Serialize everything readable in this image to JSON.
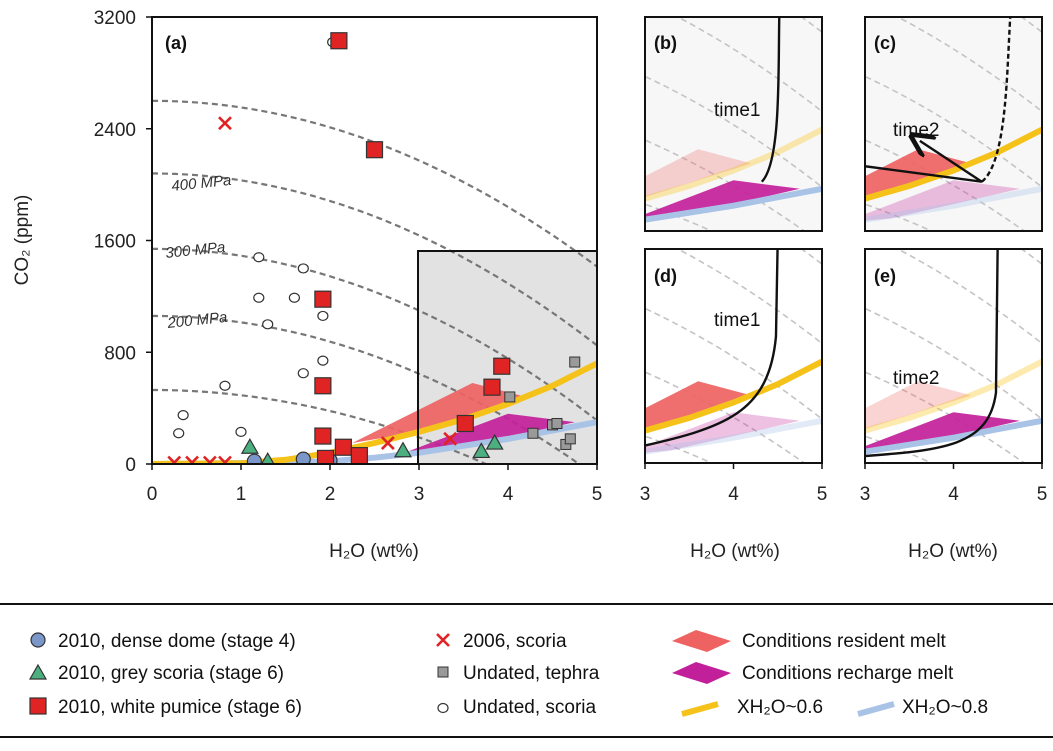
{
  "colors": {
    "dense_dome": "#7b96c8",
    "grey_scoria": "#4caf80",
    "white_pumice": "#e02424",
    "scoria_2006": "#e02424",
    "tephra": "#9a9a9a",
    "resident": "#ee6262",
    "recharge": "#c21f9a",
    "x06": "#f5c21a",
    "x08": "#a9c3e6",
    "box": "#e2e2e2",
    "isobar": "#777777"
  },
  "panels": {
    "a": {
      "label": "(a)"
    },
    "b": {
      "label": "(b)",
      "time_label": "time1"
    },
    "c": {
      "label": "(c)",
      "time_label": "time2"
    },
    "d": {
      "label": "(d)",
      "time_label": "time1"
    },
    "e": {
      "label": "(e)",
      "time_label": "time2"
    }
  },
  "axes": {
    "ylabel": "CO₂ (ppm)",
    "xlabel": "H₂O (wt%)",
    "main_xticks": [
      "0",
      "1",
      "2",
      "3",
      "4",
      "5"
    ],
    "main_yticks": [
      "0",
      "800",
      "1600",
      "2400",
      "3200"
    ],
    "small_xticks": [
      "3",
      "4",
      "5"
    ]
  },
  "isobar_labels": [
    "400 MPa",
    "300 MPa",
    "200 MPa"
  ],
  "legend": {
    "items": [
      {
        "label": "2010, dense dome (stage 4)"
      },
      {
        "label": "2010, grey scoria (stage 6)"
      },
      {
        "label": "2010, white pumice (stage 6)"
      },
      {
        "label": "2006, scoria"
      },
      {
        "label": "Undated, tephra"
      },
      {
        "label": "Undated, scoria"
      },
      {
        "label": "Conditions resident melt"
      },
      {
        "label": "Conditions recharge melt"
      },
      {
        "label": "XH₂O~0.6"
      },
      {
        "label": "XH₂O~0.8"
      }
    ]
  },
  "chart_data": {
    "type": "scatter",
    "xlabel": "H₂O (wt%)",
    "ylabel": "CO₂ (ppm)",
    "xlim": [
      0,
      5
    ],
    "ylim": [
      0,
      3200
    ],
    "series": [
      {
        "name": "2010, dense dome (stage 4)",
        "points": [
          [
            1.15,
            20
          ],
          [
            1.7,
            35
          ],
          [
            2.0,
            25
          ]
        ]
      },
      {
        "name": "2010, grey scoria (stage 6)",
        "points": [
          [
            1.1,
            120
          ],
          [
            1.3,
            20
          ],
          [
            2.82,
            95
          ],
          [
            3.7,
            90
          ],
          [
            3.85,
            150
          ]
        ]
      },
      {
        "name": "2010, white pumice (stage 6)",
        "points": [
          [
            2.1,
            3030
          ],
          [
            2.5,
            2250
          ],
          [
            1.92,
            1180
          ],
          [
            1.92,
            560
          ],
          [
            1.92,
            200
          ],
          [
            2.15,
            120
          ],
          [
            1.95,
            40
          ],
          [
            2.33,
            60
          ],
          [
            3.52,
            290
          ],
          [
            3.82,
            550
          ],
          [
            3.93,
            700
          ]
        ]
      },
      {
        "name": "2006, scoria",
        "points": [
          [
            0.82,
            2440
          ],
          [
            0.25,
            10
          ],
          [
            0.45,
            10
          ],
          [
            0.65,
            10
          ],
          [
            0.82,
            10
          ],
          [
            2.65,
            150
          ],
          [
            3.35,
            180
          ]
        ]
      },
      {
        "name": "Undated, tephra",
        "points": [
          [
            4.02,
            480
          ],
          [
            4.28,
            220
          ],
          [
            4.5,
            280
          ],
          [
            4.55,
            290
          ],
          [
            4.65,
            140
          ],
          [
            4.7,
            180
          ],
          [
            4.75,
            730
          ]
        ]
      },
      {
        "name": "Undated, scoria",
        "points": [
          [
            2.03,
            3020
          ],
          [
            1.2,
            1480
          ],
          [
            1.7,
            1400
          ],
          [
            1.2,
            1190
          ],
          [
            1.6,
            1190
          ],
          [
            1.3,
            1000
          ],
          [
            1.92,
            1060
          ],
          [
            1.92,
            740
          ],
          [
            1.7,
            650
          ],
          [
            0.82,
            560
          ],
          [
            0.35,
            350
          ],
          [
            0.3,
            220
          ],
          [
            1.0,
            230
          ]
        ]
      }
    ],
    "isobars": [
      {
        "label": "400 MPa",
        "pressure_mpa": 400,
        "co2_at_zero_h2o": 2600,
        "h2o_at_zero_co2": 7.4
      },
      {
        "label": "300 MPa",
        "pressure_mpa": 300,
        "co2_at_zero_h2o": 2080,
        "h2o_at_zero_co2": 6.5
      },
      {
        "label": "200 MPa",
        "pressure_mpa": 200,
        "co2_at_zero_h2o": 1540,
        "h2o_at_zero_co2": 5.6
      },
      {
        "pressure_mpa": 150,
        "co2_at_zero_h2o": 1060,
        "h2o_at_zero_co2": 4.8
      },
      {
        "pressure_mpa": 100,
        "co2_at_zero_h2o": 530,
        "h2o_at_zero_co2": 3.75
      }
    ],
    "isopleths": [
      {
        "name": "XH₂O~0.6",
        "points": [
          [
            0,
            0
          ],
          [
            1.0,
            5
          ],
          [
            1.5,
            30
          ],
          [
            2.0,
            80
          ],
          [
            2.5,
            150
          ],
          [
            3.0,
            230
          ],
          [
            3.5,
            320
          ],
          [
            4.0,
            430
          ],
          [
            4.5,
            560
          ],
          [
            5.0,
            720
          ]
        ]
      },
      {
        "name": "XH₂O~0.8",
        "points": [
          [
            0,
            0
          ],
          [
            1.5,
            10
          ],
          [
            2.0,
            20
          ],
          [
            2.5,
            45
          ],
          [
            3.0,
            80
          ],
          [
            3.5,
            130
          ],
          [
            4.0,
            180
          ],
          [
            4.5,
            240
          ],
          [
            5.0,
            300
          ]
        ]
      }
    ],
    "regions": [
      {
        "name": "Conditions resident melt",
        "points": [
          [
            2.25,
            150
          ],
          [
            3.6,
            580
          ],
          [
            4.2,
            480
          ],
          [
            2.9,
            220
          ]
        ]
      },
      {
        "name": "Conditions recharge melt",
        "points": [
          [
            2.75,
            60
          ],
          [
            4.0,
            360
          ],
          [
            4.75,
            300
          ],
          [
            3.3,
            90
          ]
        ]
      }
    ],
    "inset_region": {
      "xlim": [
        3,
        5
      ],
      "ylim": [
        0,
        1520
      ]
    }
  }
}
